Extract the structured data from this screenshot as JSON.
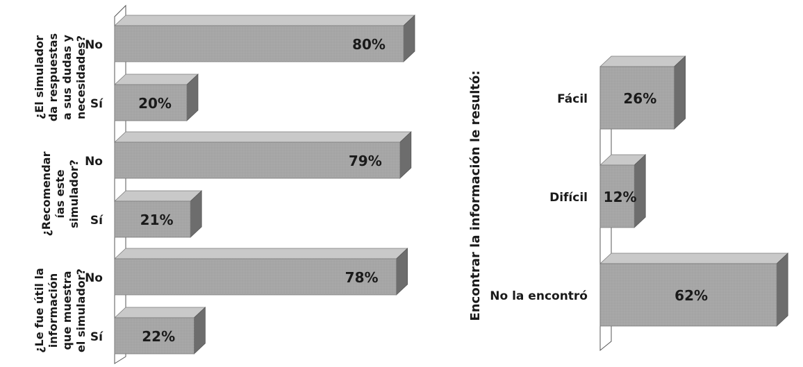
{
  "chart_data": [
    {
      "type": "bar",
      "orientation": "horizontal",
      "style": "3d",
      "groups": [
        {
          "question": [
            "¿El simulador",
            "da respuestas",
            "a sus dudas y",
            "necesidades?"
          ],
          "bars": [
            {
              "category": "No",
              "value": 80,
              "label": "80%"
            },
            {
              "category": "Sí",
              "value": 20,
              "label": "20%"
            }
          ]
        },
        {
          "question": [
            "¿Recomendar",
            "ías este",
            "simulador?"
          ],
          "bars": [
            {
              "category": "No",
              "value": 79,
              "label": "79%"
            },
            {
              "category": "Sí",
              "value": 21,
              "label": "21%"
            }
          ]
        },
        {
          "question": [
            "¿Le fue útil la",
            "información",
            "que muestra",
            "el simulador?"
          ],
          "bars": [
            {
              "category": "No",
              "value": 78,
              "label": "78%"
            },
            {
              "category": "Sí",
              "value": 22,
              "label": "22%"
            }
          ]
        }
      ],
      "xlim": [
        0,
        100
      ],
      "grid": false,
      "legend": "none"
    },
    {
      "type": "bar",
      "orientation": "horizontal",
      "style": "3d",
      "ylabel": "Encontrar la información le resultó:",
      "bars": [
        {
          "category": "Fácil",
          "value": 26,
          "label": "26%"
        },
        {
          "category": "Difícil",
          "value": 12,
          "label": "12%"
        },
        {
          "category": "No la encontró",
          "value": 62,
          "label": "62%"
        }
      ],
      "xlim": [
        0,
        100
      ],
      "grid": false,
      "legend": "none"
    }
  ],
  "colors": {
    "bar_front": "#a6a6a6",
    "bar_top": "#c9c9c9",
    "bar_side": "#6d6d6d",
    "text": "#1a1a1a",
    "wall": "#555555"
  }
}
